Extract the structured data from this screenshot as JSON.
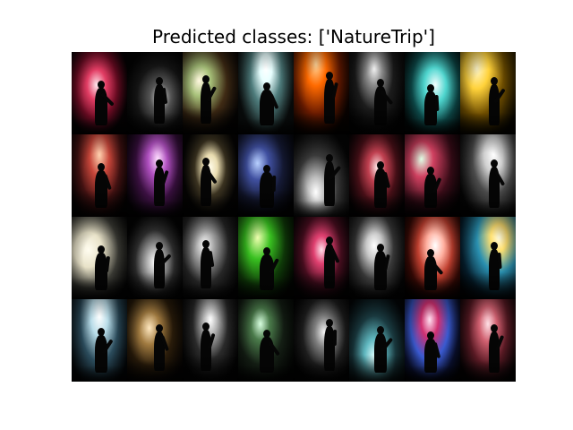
{
  "title": "Predicted classes: ['NatureTrip']",
  "tiles": [
    {
      "glow": "radial-gradient(ellipse at 45% 40%, #ffe9ee 0%, #e23d64 22%, #6a0b22 48%, #050203 75%)",
      "tone": "crimson"
    },
    {
      "glow": "radial-gradient(ellipse at 60% 55%, #d9d9d9 0%, #555555 22%, #151515 50%, #030303 80%)",
      "tone": "grey"
    },
    {
      "glow": "radial-gradient(ellipse at 30% 35%, #fff7e0 0%, #a8c27a 20%, #3f2a14 50%, #070504 80%)",
      "tone": "green-amber"
    },
    {
      "glow": "radial-gradient(ellipse at 50% 20%, #ffffff 0%, #e8ffff 15%, #4e7c7c 40%, #0a0d0d 75%)",
      "tone": "white-cyan"
    },
    {
      "glow": "radial-gradient(ellipse at 40% 15%, #ffd59a 0%, #ff6a00 22%, #6b1b00 50%, #0a0200 80%)",
      "tone": "orange"
    },
    {
      "glow": "radial-gradient(ellipse at 45% 20%, #f4f4f4 0%, #8c8c8c 18%, #1c1c1c 45%, #030303 80%)",
      "tone": "grey"
    },
    {
      "glow": "radial-gradient(ellipse at 55% 40%, #f4ffff 0%, #4fd6cf 25%, #0d4a4a 55%, #020808 85%)",
      "tone": "teal"
    },
    {
      "glow": "radial-gradient(ellipse at 30% 20%, #fff7cc 0%, #ffd23a 22%, #6e4d00 50%, #0b0800 85%)",
      "tone": "gold"
    },
    {
      "glow": "radial-gradient(ellipse at 50% 25%, #ffd2b0 0%, #c7463a 25%, #451212 55%, #060202 85%)",
      "tone": "red-orange"
    },
    {
      "glow": "radial-gradient(ellipse at 55% 30%, #ffe0ff 0%, #b050c0 22%, #3a1040 50%, #050205 85%)",
      "tone": "purple"
    },
    {
      "glow": "radial-gradient(ellipse at 50% 40%, #fffbe8 0%, #e9dcb0 18%, #3a3220 40%, #050403 70%)",
      "tone": "cream"
    },
    {
      "glow": "radial-gradient(ellipse at 35% 35%, #b8d0ff 0%, #4050a0 22%, #151a35 50%, #030305 85%)",
      "tone": "blue"
    },
    {
      "glow": "radial-gradient(ellipse at 40% 70%, #ffffff 0%, #bdbdbd 18%, #3a3a3a 45%, #050505 80%)",
      "tone": "grey"
    },
    {
      "glow": "radial-gradient(ellipse at 50% 40%, #ffe6e6 0%, #c04050 22%, #4a1018 50%, #050203 85%)",
      "tone": "crimson"
    },
    {
      "glow": "radial-gradient(ellipse at 30% 30%, #e0ffe6 0%, #d04060 22%, #3a0c18 55%, #040203 85%)",
      "tone": "green-red"
    },
    {
      "glow": "radial-gradient(ellipse at 60% 25%, #ffffff 0%, #cfcfcf 20%, #4a4a4a 45%, #050505 80%)",
      "tone": "grey"
    },
    {
      "glow": "radial-gradient(ellipse at 30% 40%, #fffdf0 0%, #e8e2c8 25%, #3a3a34 55%, #050505 85%)",
      "tone": "cream"
    },
    {
      "glow": "radial-gradient(ellipse at 50% 55%, #ffffff 0%, #b0b0b0 20%, #2e2e2e 50%, #040404 80%)",
      "tone": "grey"
    },
    {
      "glow": "radial-gradient(ellipse at 40% 35%, #ffffff 0%, #9a9a9a 22%, #262626 50%, #040404 85%)",
      "tone": "grey"
    },
    {
      "glow": "radial-gradient(ellipse at 35% 25%, #f0ffb0 0%, #38c020 25%, #0f3a08 55%, #020501 85%)",
      "tone": "green"
    },
    {
      "glow": "radial-gradient(ellipse at 50% 40%, #ffe0ea 0%, #e04070 20%, #4a0e20 50%, #050203 85%)",
      "tone": "crimson"
    },
    {
      "glow": "radial-gradient(ellipse at 45% 35%, #ffffff 0%, #c8c8c8 18%, #383838 45%, #050505 80%)",
      "tone": "grey"
    },
    {
      "glow": "radial-gradient(ellipse at 55% 35%, #ffffff 0%, #ffb0a0 20%, #c04030 40%, #3a0a05 65%, #050100 90%)",
      "tone": "red"
    },
    {
      "glow": "radial-gradient(ellipse at 70% 25%, #fffbe0 0%, #ffe070 15%, #2a90b0 40%, #062030 70%, #020508 90%)",
      "tone": "cyan-gold"
    },
    {
      "glow": "radial-gradient(ellipse at 50% 20%, #ffffff 0%, #b8dce8 22%, #2a4a5a 50%, #030608 85%)",
      "tone": "light-blue"
    },
    {
      "glow": "radial-gradient(ellipse at 40% 35%, #ffe8c0 0%, #a07a40 22%, #2a1c0a 50%, #050302 85%)",
      "tone": "amber"
    },
    {
      "glow": "radial-gradient(ellipse at 50% 25%, #ffffff 0%, #b0b0b0 18%, #2a2a2a 45%, #040404 80%)",
      "tone": "grey"
    },
    {
      "glow": "radial-gradient(ellipse at 40% 30%, #d8ffe0 0%, #4a7a4a 20%, #141e14 50%, #030403 85%)",
      "tone": "dark-green"
    },
    {
      "glow": "radial-gradient(ellipse at 55% 40%, #f4f4f4 0%, #808080 22%, #1e1e1e 50%, #030303 80%)",
      "tone": "grey"
    },
    {
      "glow": "radial-gradient(ellipse at 45% 70%, #e0ffff 0%, #60b8c0 22%, #1a3a40 50%, #030608 85%)",
      "tone": "teal"
    },
    {
      "glow": "radial-gradient(ellipse at 45% 25%, #ffe0f0 0%, #d03070 20%, #3a5ad0 45%, #0a1030 70%, #020205 90%)",
      "tone": "magenta-blue"
    },
    {
      "glow": "radial-gradient(ellipse at 50% 30%, #ffe0e6 0%, #d06070 22%, #5a1a24 50%, #080304 85%)",
      "tone": "rose"
    }
  ]
}
